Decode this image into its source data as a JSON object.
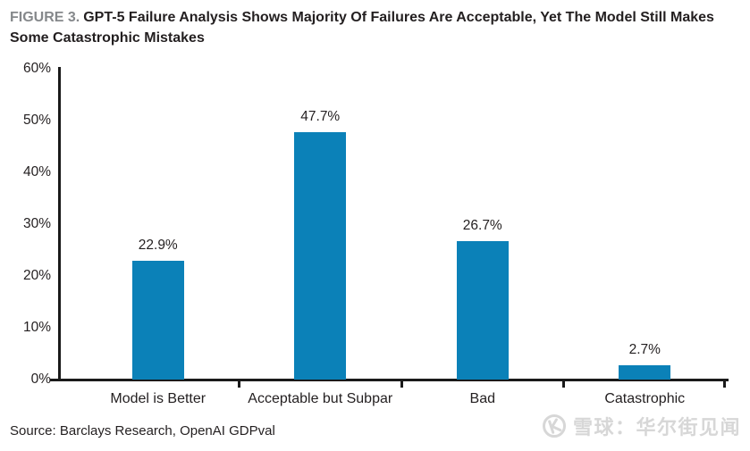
{
  "title": {
    "figure_label": "FIGURE 3.",
    "text": "GPT-5 Failure Analysis Shows Majority Of Failures Are Acceptable, Yet The Model Still Makes Some Catastrophic Mistakes"
  },
  "source": "Source: Barclays Research, OpenAI GDPval",
  "watermark": {
    "icon": "xueqiu-snowball-logo",
    "text": "雪球：华尔街见闻",
    "color": "#d7d7d7"
  },
  "colors": {
    "bar": "#0b81b8",
    "axis": "#1a1a1a",
    "figure_label_gray": "#85888b",
    "text": "#231f20",
    "background": "#ffffff"
  },
  "chart_data": {
    "type": "bar",
    "title": "GPT-5 Failure Analysis Shows Majority Of Failures Are Acceptable, Yet The Model Still Makes Some Catastrophic Mistakes",
    "categories": [
      "Model is Better",
      "Acceptable but Subpar",
      "Bad",
      "Catastrophic"
    ],
    "values": [
      22.9,
      47.7,
      26.7,
      2.7
    ],
    "value_labels": [
      "22.9%",
      "47.7%",
      "26.7%",
      "2.7%"
    ],
    "xlabel": "",
    "ylabel": "",
    "ylim": [
      0,
      60
    ],
    "ytick_values": [
      0,
      10,
      20,
      30,
      40,
      50,
      60
    ],
    "ytick_labels": [
      "0%",
      "10%",
      "20%",
      "30%",
      "40%",
      "50%",
      "60%"
    ],
    "grid": false,
    "legend": null,
    "bar_color": "#0b81b8"
  }
}
